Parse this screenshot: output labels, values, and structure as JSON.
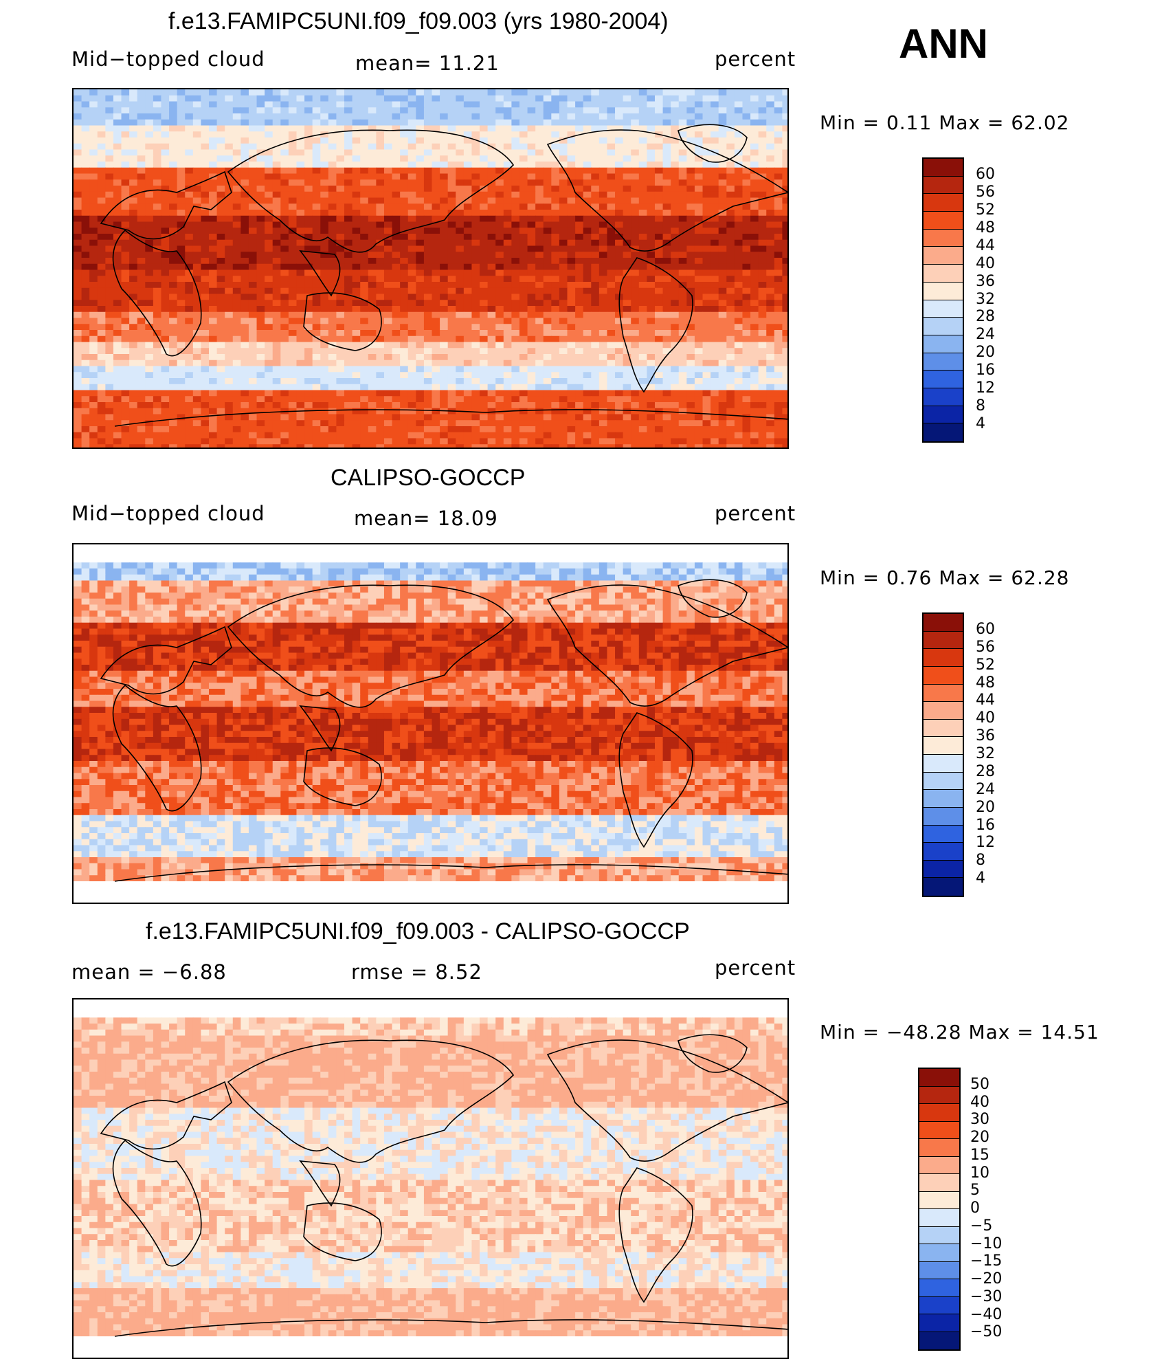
{
  "season": "ANN",
  "panels": [
    {
      "title": "f.e13.FAMIPC5UNI.f09_f09.003 (yrs 1980-2004)",
      "left_label": "Mid−topped  cloud",
      "center_label": "mean=   11.21",
      "right_label": "percent",
      "minmax": "Min  =     0.11  Max  =    62.02",
      "colorbar": {
        "labels": [
          "60",
          "56",
          "52",
          "48",
          "44",
          "40",
          "36",
          "32",
          "28",
          "24",
          "20",
          "16",
          "12",
          "8",
          "4"
        ],
        "colors": [
          "#8a1008",
          "#b5260f",
          "#d8370f",
          "#f04f1a",
          "#f8784a",
          "#fbab8b",
          "#fdd0b8",
          "#fdebd8",
          "#d9e9fb",
          "#b5d2f6",
          "#8ab4f0",
          "#5e8fe8",
          "#2f63e0",
          "#1a41c9",
          "#0b24a6",
          "#051777"
        ]
      },
      "map_style": "model"
    },
    {
      "title": "CALIPSO-GOCCP",
      "left_label": "Mid−topped  cloud",
      "center_label": "mean=   18.09",
      "right_label": "percent",
      "minmax": "Min  =     0.76  Max  =    62.28",
      "colorbar": {
        "labels": [
          "60",
          "56",
          "52",
          "48",
          "44",
          "40",
          "36",
          "32",
          "28",
          "24",
          "20",
          "16",
          "12",
          "8",
          "4"
        ],
        "colors": [
          "#8a1008",
          "#b5260f",
          "#d8370f",
          "#f04f1a",
          "#f8784a",
          "#fbab8b",
          "#fdd0b8",
          "#fdebd8",
          "#d9e9fb",
          "#b5d2f6",
          "#8ab4f0",
          "#5e8fe8",
          "#2f63e0",
          "#1a41c9",
          "#0b24a6",
          "#051777"
        ]
      },
      "map_style": "obs"
    },
    {
      "title": "f.e13.FAMIPC5UNI.f09_f09.003 - CALIPSO-GOCCP",
      "left_label": "mean  =    −6.88",
      "center_label": "rmse  =     8.52",
      "right_label": "percent",
      "minmax": "Min  = −48.28  Max  =    14.51",
      "colorbar": {
        "labels": [
          "50",
          "40",
          "30",
          "20",
          "15",
          "10",
          "5",
          "0",
          "−5",
          "−10",
          "−15",
          "−20",
          "−30",
          "−40",
          "−50"
        ],
        "colors": [
          "#8a1008",
          "#b5260f",
          "#d8370f",
          "#f04f1a",
          "#f8784a",
          "#fbab8b",
          "#fdd0b8",
          "#fdebd8",
          "#d9e9fb",
          "#b5d2f6",
          "#8ab4f0",
          "#5e8fe8",
          "#2f63e0",
          "#1a41c9",
          "#0b24a6",
          "#051777"
        ]
      },
      "map_style": "diff"
    }
  ]
}
